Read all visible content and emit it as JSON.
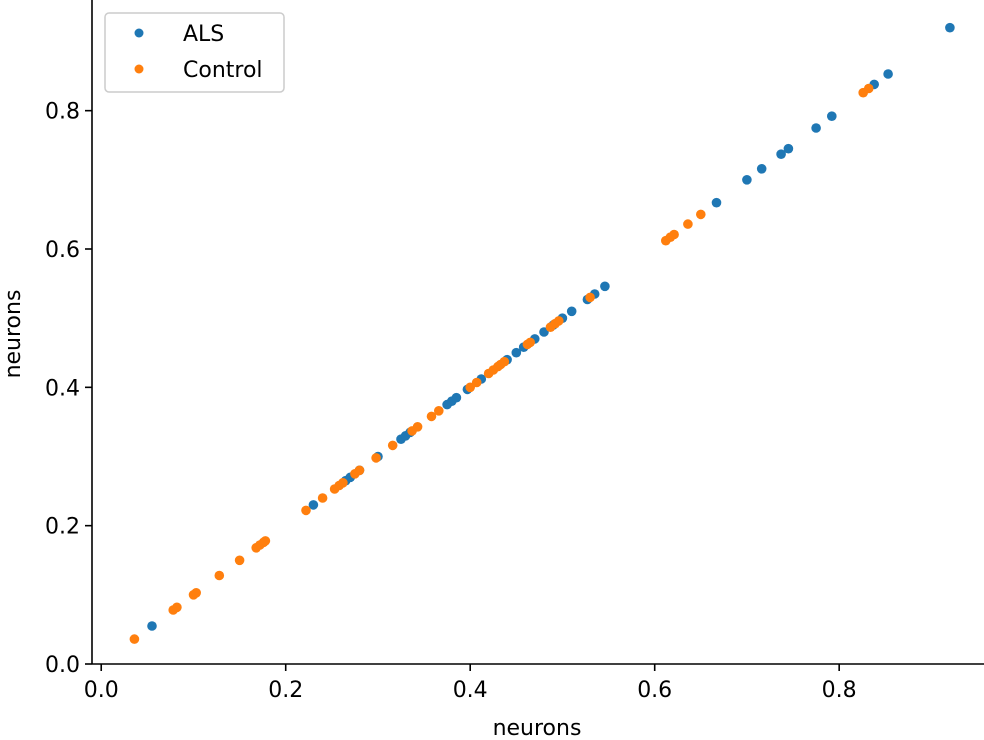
{
  "chart_data": {
    "type": "scatter",
    "xlabel": "neurons",
    "ylabel": "neurons",
    "xlim": [
      -0.01,
      0.957
    ],
    "ylim": [
      0,
      0.96
    ],
    "xticks": [
      0.0,
      0.2,
      0.4,
      0.6,
      0.8
    ],
    "yticks": [
      0.0,
      0.2,
      0.4,
      0.6,
      0.8
    ],
    "xtick_labels": [
      "0.0",
      "0.2",
      "0.4",
      "0.6",
      "0.8"
    ],
    "ytick_labels": [
      "0.0",
      "0.2",
      "0.4",
      "0.6",
      "0.8"
    ],
    "grid": false,
    "legend_position": "top-left",
    "series": [
      {
        "name": "ALS",
        "color": "#1f77b4",
        "x": [
          0.055,
          0.23,
          0.265,
          0.27,
          0.28,
          0.3,
          0.325,
          0.33,
          0.335,
          0.375,
          0.38,
          0.385,
          0.397,
          0.412,
          0.44,
          0.45,
          0.458,
          0.47,
          0.48,
          0.49,
          0.5,
          0.51,
          0.527,
          0.535,
          0.546,
          0.667,
          0.7,
          0.716,
          0.737,
          0.745,
          0.775,
          0.792,
          0.838,
          0.853,
          0.92
        ],
        "y": [
          0.055,
          0.23,
          0.265,
          0.27,
          0.28,
          0.3,
          0.325,
          0.33,
          0.335,
          0.375,
          0.38,
          0.385,
          0.397,
          0.412,
          0.44,
          0.45,
          0.458,
          0.47,
          0.48,
          0.49,
          0.5,
          0.51,
          0.527,
          0.535,
          0.546,
          0.667,
          0.7,
          0.716,
          0.737,
          0.745,
          0.775,
          0.792,
          0.838,
          0.853,
          0.92
        ]
      },
      {
        "name": "Control",
        "color": "#ff7f0e",
        "x": [
          0.036,
          0.078,
          0.082,
          0.1,
          0.103,
          0.128,
          0.15,
          0.168,
          0.172,
          0.176,
          0.178,
          0.222,
          0.24,
          0.253,
          0.258,
          0.262,
          0.275,
          0.28,
          0.298,
          0.316,
          0.337,
          0.343,
          0.358,
          0.366,
          0.4,
          0.407,
          0.42,
          0.425,
          0.43,
          0.433,
          0.437,
          0.462,
          0.465,
          0.487,
          0.492,
          0.496,
          0.53,
          0.612,
          0.617,
          0.621,
          0.636,
          0.65,
          0.826,
          0.832
        ],
        "y": [
          0.036,
          0.078,
          0.082,
          0.1,
          0.103,
          0.128,
          0.15,
          0.168,
          0.172,
          0.176,
          0.178,
          0.222,
          0.24,
          0.253,
          0.258,
          0.262,
          0.275,
          0.28,
          0.298,
          0.316,
          0.337,
          0.343,
          0.358,
          0.366,
          0.4,
          0.407,
          0.42,
          0.425,
          0.43,
          0.433,
          0.437,
          0.462,
          0.465,
          0.487,
          0.492,
          0.496,
          0.53,
          0.612,
          0.617,
          0.621,
          0.636,
          0.65,
          0.826,
          0.832
        ]
      }
    ]
  }
}
